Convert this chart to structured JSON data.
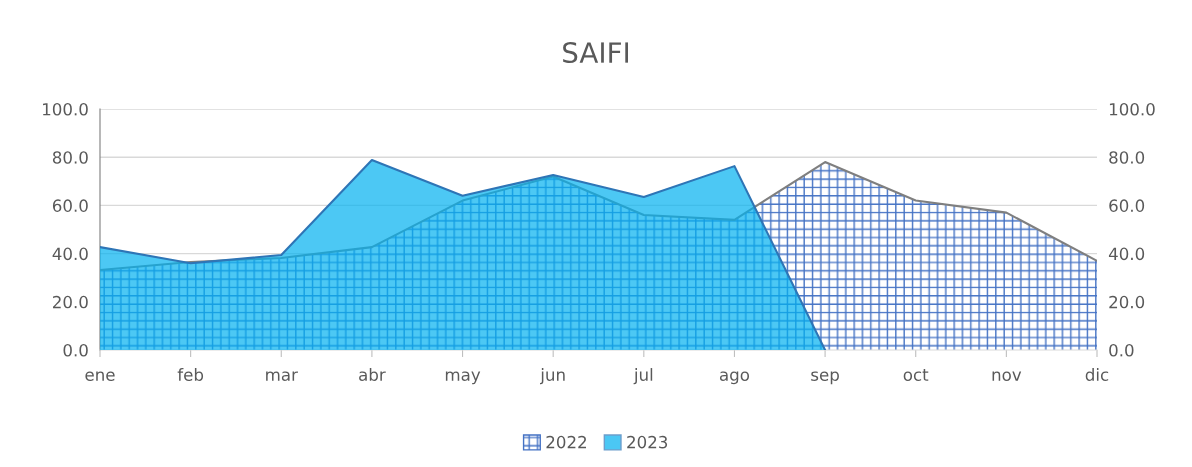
{
  "chart_data": {
    "type": "area",
    "title": "SAIFI",
    "categories": [
      "ene",
      "feb",
      "mar",
      "abr",
      "may",
      "jun",
      "jul",
      "ago",
      "sep",
      "oct",
      "nov",
      "dic"
    ],
    "series": [
      {
        "name": "2022",
        "color": "#4472c4",
        "values": [
          33.2,
          36.5,
          38.2,
          42.7,
          62.0,
          72.0,
          56.0,
          54.0,
          78.0,
          62.0,
          57.0,
          37.0
        ]
      },
      {
        "name": "2023",
        "color": "#00b0f0",
        "values": [
          42.7,
          36.0,
          39.4,
          78.8,
          64.0,
          72.6,
          63.5,
          76.3,
          0.0,
          null,
          null,
          null
        ]
      }
    ],
    "ylim": [
      0,
      100
    ],
    "yticks": [
      {
        "value": 0,
        "label": "0.0"
      },
      {
        "value": 20,
        "label": "20.0"
      },
      {
        "value": 40,
        "label": "40.0"
      },
      {
        "value": 60,
        "label": "60.0"
      },
      {
        "value": 80,
        "label": "80.0"
      },
      {
        "value": 100,
        "label": "100.0"
      }
    ],
    "y2lim": [
      0,
      100
    ],
    "y2ticks": [
      {
        "value": 0,
        "label": "0.0"
      },
      {
        "value": 20,
        "label": "20.0"
      },
      {
        "value": 40,
        "label": "40.0"
      },
      {
        "value": 60,
        "label": "60.0"
      },
      {
        "value": 80,
        "label": "80.0"
      },
      {
        "value": 100,
        "label": "100.0"
      }
    ],
    "grid": "y",
    "legend": "bottom"
  }
}
